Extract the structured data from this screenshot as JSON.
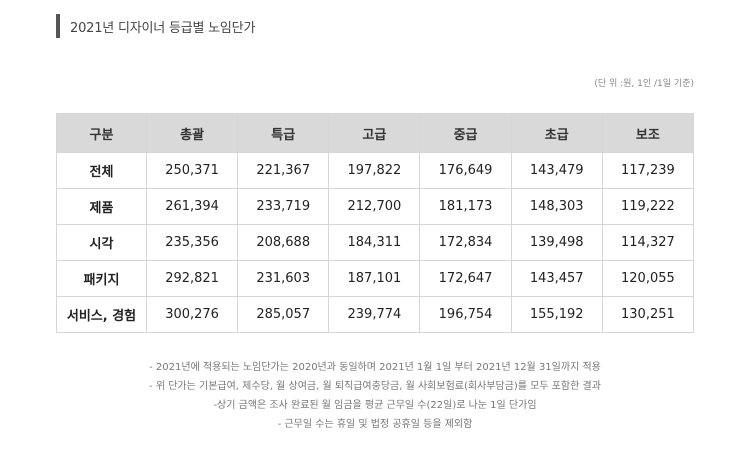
{
  "title": "2021년 디자이너 등급별 노임단가",
  "unit_note": "(단 위 :원, 1인 /1일 기준)",
  "table": {
    "headers": [
      "구분",
      "총괄",
      "특급",
      "고급",
      "중급",
      "초급",
      "보조"
    ],
    "rows": [
      [
        "전체",
        "250,371",
        "221,367",
        "197,822",
        "176,649",
        "143,479",
        "117,239"
      ],
      [
        "제품",
        "261,394",
        "233,719",
        "212,700",
        "181,173",
        "148,303",
        "119,222"
      ],
      [
        "시각",
        "235,356",
        "208,688",
        "184,311",
        "172,834",
        "139,498",
        "114,327"
      ],
      [
        "패키지",
        "292,821",
        "231,603",
        "187,101",
        "172,647",
        "143,457",
        "120,055"
      ],
      [
        "서비스, 경험",
        "300,276",
        "285,057",
        "239,774",
        "196,754",
        "155,192",
        "130,251"
      ]
    ]
  },
  "notes": [
    "- 2021년에 적용되는 노임단가는 2020년과 동일하며 2021년 1월 1일 부터 2021년 12월 31일까지 적용",
    "- 위 단가는 기본급여, 제수당, 월 상여금, 월 퇴직급여충당금, 월 사회보험료(회사부담금)를 모두 포함한 결과",
    "-상기 금액은 조사 완료된 월 임금을 평균 근무일 수(22일)로 나눈 1일 단가임",
    "- 근무일 수는 휴일 및 법정 공휴일 등을 제외함"
  ]
}
